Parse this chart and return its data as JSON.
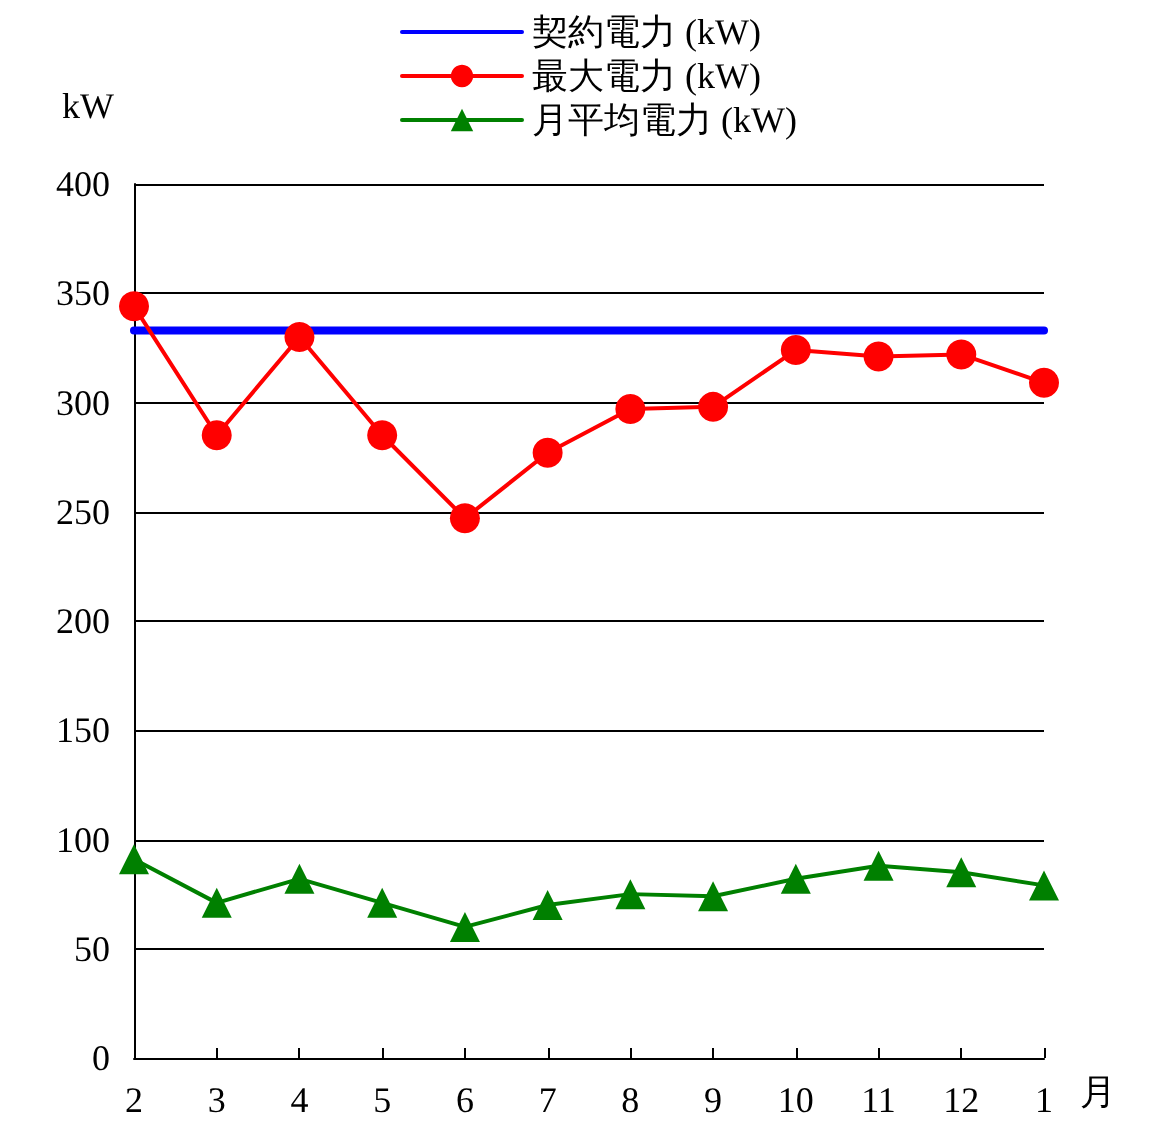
{
  "chart_data": {
    "type": "line",
    "xlabel": "月",
    "ylabel": "kW",
    "categories": [
      "2",
      "3",
      "4",
      "5",
      "6",
      "7",
      "8",
      "9",
      "10",
      "11",
      "12",
      "1"
    ],
    "series": [
      {
        "name": "契約電力 (kW)",
        "color": "#0000ff",
        "marker": "none",
        "values": [
          333,
          333,
          333,
          333,
          333,
          333,
          333,
          333,
          333,
          333,
          333,
          333
        ]
      },
      {
        "name": "最大電力 (kW)",
        "color": "#ff0000",
        "marker": "circle",
        "values": [
          344,
          285,
          330,
          285,
          247,
          277,
          297,
          298,
          324,
          321,
          322,
          309
        ]
      },
      {
        "name": "月平均電力 (kW)",
        "color": "#008000",
        "marker": "triangle",
        "values": [
          91,
          71,
          82,
          71,
          60,
          70,
          75,
          74,
          82,
          88,
          85,
          79
        ]
      }
    ],
    "ylim": [
      0,
      400
    ],
    "yticks": [
      0,
      50,
      100,
      150,
      200,
      250,
      300,
      350,
      400
    ],
    "grid": "y",
    "legend": "top",
    "line_style": "solid"
  }
}
